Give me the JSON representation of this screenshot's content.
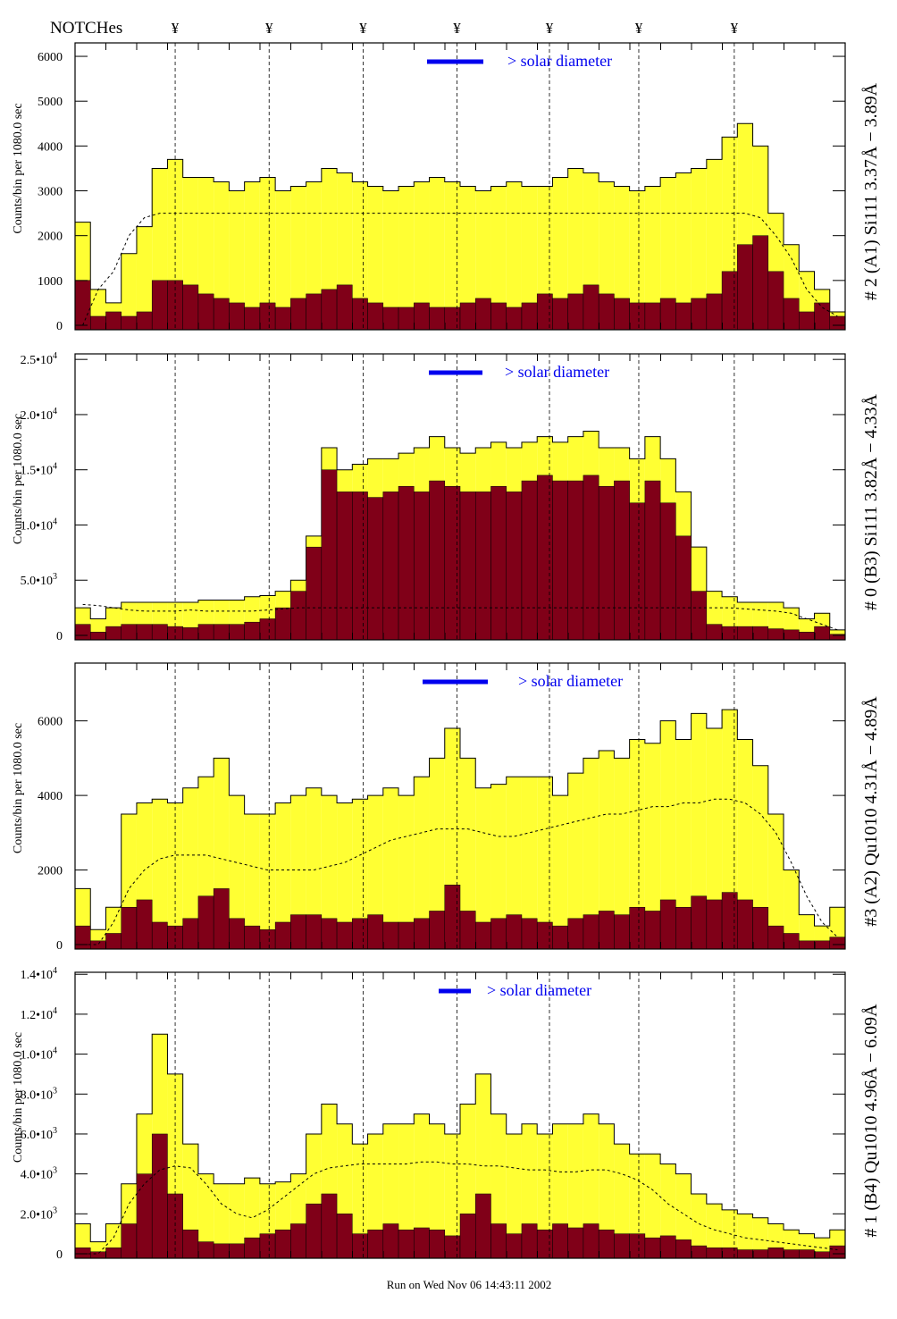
{
  "header": {
    "notches_label": "NOTCHes",
    "notch_glyph": "¥"
  },
  "footer": {
    "run_text": "Run on Wed Nov 06 14:43:11 2002"
  },
  "legend_text": "> solar diameter",
  "colors": {
    "signal": "#ffff33",
    "background": "#800018",
    "legend": "#0000ee",
    "frame": "#000000"
  },
  "chart_data": [
    {
      "type": "bar",
      "title": "# 2 (A1) Si111  3.37Å − 3.89Å",
      "ylabel": "Counts/bin per   1080.0 sec",
      "ylim": [
        0,
        6300
      ],
      "yticks": [
        {
          "v": 0,
          "label": "0"
        },
        {
          "v": 1000,
          "label": "1000"
        },
        {
          "v": 2000,
          "label": "2000"
        },
        {
          "v": 3000,
          "label": "3000"
        },
        {
          "v": 4000,
          "label": "4000"
        },
        {
          "v": 5000,
          "label": "5000"
        },
        {
          "v": 6000,
          "label": "6000"
        }
      ],
      "notches": [
        6.5,
        12.6,
        18.7,
        24.8,
        30.8,
        36.6,
        42.8
      ],
      "series": [
        {
          "name": "total",
          "values": [
            2300,
            800,
            500,
            1600,
            2200,
            3500,
            3700,
            3300,
            3300,
            3200,
            3000,
            3200,
            3300,
            3000,
            3100,
            3200,
            3500,
            3400,
            3200,
            3100,
            3000,
            3100,
            3200,
            3300,
            3200,
            3100,
            3000,
            3100,
            3200,
            3100,
            3100,
            3300,
            3500,
            3400,
            3200,
            3100,
            3000,
            3100,
            3300,
            3400,
            3500,
            3700,
            4200,
            4500,
            4000,
            2500,
            1800,
            1200,
            800,
            300
          ]
        },
        {
          "name": "background",
          "values": [
            1000,
            200,
            300,
            200,
            300,
            1000,
            1000,
            900,
            700,
            600,
            500,
            400,
            500,
            400,
            600,
            700,
            800,
            900,
            600,
            500,
            400,
            400,
            500,
            400,
            400,
            500,
            600,
            500,
            400,
            500,
            700,
            600,
            700,
            900,
            700,
            600,
            500,
            500,
            600,
            500,
            600,
            700,
            1200,
            1800,
            2000,
            1200,
            600,
            300,
            500,
            200
          ]
        },
        {
          "name": "level",
          "values": [
            0,
            800,
            1200,
            2000,
            2400,
            2500,
            2500,
            2500,
            2500,
            2500,
            2500,
            2500,
            2500,
            2500,
            2500,
            2500,
            2500,
            2500,
            2500,
            2500,
            2500,
            2500,
            2500,
            2500,
            2500,
            2500,
            2500,
            2500,
            2500,
            2500,
            2500,
            2500,
            2500,
            2500,
            2500,
            2500,
            2500,
            2500,
            2500,
            2500,
            2500,
            2500,
            2500,
            2500,
            2400,
            2000,
            1500,
            800,
            400,
            200
          ]
        }
      ]
    },
    {
      "type": "bar",
      "title": "# 0 (B3) Si111  3.82Å − 4.33Å",
      "ylabel": "Counts/bin per   1080.0 sec",
      "ylim": [
        0,
        25500
      ],
      "yticks": [
        {
          "v": 0,
          "label": "0"
        },
        {
          "v": 5000,
          "label": "5.0•10",
          "exp": "3"
        },
        {
          "v": 10000,
          "label": "1.0•10",
          "exp": "4"
        },
        {
          "v": 15000,
          "label": "1.5•10",
          "exp": "4"
        },
        {
          "v": 20000,
          "label": "2.0•10",
          "exp": "4"
        },
        {
          "v": 25000,
          "label": "2.5•10",
          "exp": "4"
        }
      ],
      "notches": [
        6.5,
        12.6,
        18.7,
        24.8,
        30.8,
        36.6,
        42.8
      ],
      "series": [
        {
          "name": "total",
          "values": [
            2500,
            1500,
            2500,
            3000,
            3000,
            3000,
            3000,
            3000,
            3200,
            3200,
            3200,
            3500,
            3600,
            4000,
            5000,
            9000,
            17000,
            15000,
            15500,
            16000,
            16000,
            16500,
            17000,
            18000,
            17000,
            16500,
            17000,
            17500,
            17000,
            17500,
            18000,
            17500,
            18000,
            18500,
            17000,
            17000,
            16000,
            18000,
            16000,
            13000,
            8000,
            4000,
            3500,
            3000,
            3000,
            3000,
            2500,
            1500,
            2000,
            500
          ]
        },
        {
          "name": "background",
          "values": [
            1000,
            300,
            800,
            1000,
            1000,
            1000,
            800,
            700,
            1000,
            1000,
            1000,
            1200,
            1500,
            2500,
            4000,
            8000,
            15000,
            13000,
            13000,
            12500,
            13000,
            13500,
            13000,
            14000,
            13500,
            13000,
            13000,
            13500,
            13000,
            14000,
            14500,
            14000,
            14000,
            14500,
            13500,
            14000,
            12000,
            14000,
            12000,
            9000,
            4000,
            1000,
            800,
            800,
            800,
            600,
            500,
            300,
            800,
            100
          ]
        },
        {
          "name": "level",
          "values": [
            2800,
            2700,
            2500,
            2300,
            2200,
            2200,
            2200,
            2300,
            2200,
            2200,
            2200,
            2200,
            2300,
            2400,
            2500,
            2500,
            2500,
            2500,
            2500,
            2500,
            2500,
            2500,
            2500,
            2500,
            2500,
            2500,
            2500,
            2500,
            2500,
            2500,
            2500,
            2500,
            2500,
            2500,
            2500,
            2500,
            2500,
            2500,
            2500,
            2500,
            2500,
            2500,
            2500,
            2400,
            2300,
            2200,
            2000,
            1500,
            1000,
            500
          ]
        }
      ]
    },
    {
      "type": "bar",
      "title": "#3 (A2) Qu1010  4.31Å − 4.89Å",
      "ylabel": "Counts/bin per   1080.0 sec",
      "ylim": [
        0,
        7550
      ],
      "yticks": [
        {
          "v": 0,
          "label": "0"
        },
        {
          "v": 2000,
          "label": "2000"
        },
        {
          "v": 4000,
          "label": "4000"
        },
        {
          "v": 6000,
          "label": "6000"
        }
      ],
      "notches": [
        6.5,
        12.6,
        18.7,
        24.8,
        30.8,
        36.6,
        42.8
      ],
      "series": [
        {
          "name": "total",
          "values": [
            1500,
            400,
            1000,
            3500,
            3800,
            3900,
            3800,
            4200,
            4500,
            5000,
            4000,
            3500,
            3500,
            3800,
            4000,
            4200,
            4000,
            3800,
            3900,
            4000,
            4200,
            4000,
            4500,
            5000,
            5800,
            5000,
            4200,
            4300,
            4500,
            4500,
            4500,
            4000,
            4600,
            5000,
            5200,
            5000,
            5500,
            5400,
            6000,
            5500,
            6200,
            5800,
            6300,
            5500,
            4800,
            3500,
            2000,
            800,
            500,
            1000
          ]
        },
        {
          "name": "background",
          "values": [
            500,
            100,
            300,
            1000,
            1200,
            600,
            500,
            700,
            1300,
            1500,
            700,
            500,
            400,
            600,
            800,
            800,
            700,
            600,
            700,
            800,
            600,
            600,
            700,
            900,
            1600,
            900,
            600,
            700,
            800,
            700,
            600,
            500,
            700,
            800,
            900,
            800,
            1000,
            900,
            1200,
            1000,
            1300,
            1200,
            1400,
            1200,
            1000,
            500,
            300,
            100,
            100,
            200
          ]
        },
        {
          "name": "level",
          "values": [
            0,
            0,
            600,
            1500,
            2000,
            2300,
            2400,
            2400,
            2400,
            2300,
            2200,
            2100,
            2000,
            2000,
            2000,
            2000,
            2100,
            2200,
            2400,
            2600,
            2800,
            2900,
            3000,
            3100,
            3100,
            3100,
            3000,
            2900,
            2900,
            3000,
            3100,
            3200,
            3300,
            3400,
            3500,
            3500,
            3600,
            3700,
            3700,
            3800,
            3800,
            3900,
            3900,
            3800,
            3500,
            3000,
            2200,
            1300,
            600,
            200
          ]
        }
      ]
    },
    {
      "type": "bar",
      "title": "# 1 (B4) Qu1010 4.96Å − 6.09Å",
      "ylabel": "Counts/bin per   1080.0 sec",
      "ylim": [
        0,
        14100
      ],
      "yticks": [
        {
          "v": 0,
          "label": "0"
        },
        {
          "v": 2000,
          "label": "2.0•10",
          "exp": "3"
        },
        {
          "v": 4000,
          "label": "4.0•10",
          "exp": "3"
        },
        {
          "v": 6000,
          "label": "6.0•10",
          "exp": "3"
        },
        {
          "v": 8000,
          "label": "8.0•10",
          "exp": "3"
        },
        {
          "v": 10000,
          "label": "1.0•10",
          "exp": "4"
        },
        {
          "v": 12000,
          "label": "1.2•10",
          "exp": "4"
        },
        {
          "v": 14000,
          "label": "1.4•10",
          "exp": "4"
        }
      ],
      "notches": [
        6.5,
        12.6,
        18.7,
        24.8,
        30.8,
        36.6,
        42.8
      ],
      "series": [
        {
          "name": "total",
          "values": [
            1500,
            600,
            1500,
            3500,
            7000,
            11000,
            9000,
            5500,
            4000,
            3500,
            3500,
            3800,
            3500,
            3600,
            4000,
            6000,
            7500,
            6500,
            5500,
            6000,
            6500,
            6500,
            7000,
            6500,
            6000,
            7500,
            9000,
            7000,
            6000,
            6500,
            6000,
            6500,
            6500,
            7000,
            6500,
            5500,
            5000,
            5000,
            4500,
            4000,
            3000,
            2500,
            2200,
            2000,
            1800,
            1500,
            1200,
            1000,
            800,
            1200
          ]
        },
        {
          "name": "background",
          "values": [
            300,
            100,
            300,
            1500,
            4000,
            6000,
            3000,
            1200,
            600,
            500,
            500,
            800,
            1000,
            1200,
            1500,
            2500,
            3000,
            2000,
            1000,
            1200,
            1500,
            1200,
            1300,
            1200,
            900,
            2000,
            3000,
            1500,
            1000,
            1500,
            1200,
            1500,
            1300,
            1500,
            1200,
            1000,
            1000,
            800,
            900,
            700,
            400,
            300,
            300,
            200,
            200,
            300,
            200,
            200,
            100,
            400
          ]
        },
        {
          "name": "level",
          "values": [
            0,
            0,
            800,
            2500,
            3500,
            4200,
            4400,
            4300,
            3500,
            2500,
            2000,
            1800,
            2200,
            2800,
            3400,
            4000,
            4300,
            4400,
            4500,
            4500,
            4500,
            4500,
            4600,
            4600,
            4500,
            4500,
            4400,
            4400,
            4300,
            4200,
            4200,
            4100,
            4100,
            4200,
            4200,
            4000,
            3700,
            3200,
            2500,
            2000,
            1500,
            1200,
            1000,
            800,
            700,
            600,
            500,
            400,
            300,
            200
          ]
        }
      ]
    }
  ]
}
